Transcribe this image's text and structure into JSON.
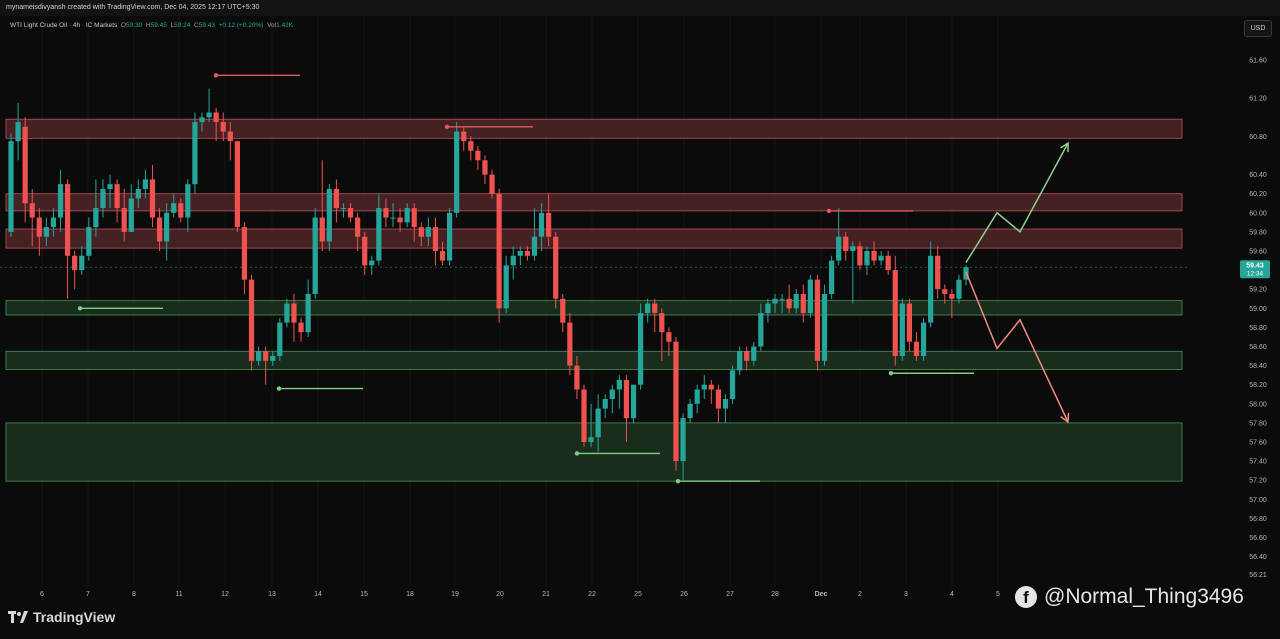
{
  "header": {
    "text": "mynameisdivyansh created with TradingView.com, Dec 04, 2025 12:17 UTC+5:30"
  },
  "symbol": {
    "name": "WTI Light Crude Oil · 4h · IC Markets",
    "o_label": "O",
    "o": "59.30",
    "h_label": "H",
    "h": "59.45",
    "l_label": "L",
    "l": "59.24",
    "c_label": "C",
    "c": "59.43",
    "change": "+0.12 (+0.20%)",
    "vol_label": "Vol",
    "vol": "1.42K"
  },
  "currency": "USD",
  "colors": {
    "bull": "#26a69a",
    "bear": "#ef5350",
    "resistance_zone": "#5a2a2e",
    "support_zone": "#1f3a24",
    "up_arrow": "#8fd18f",
    "down_arrow": "#f28b82",
    "last_price_bg": "#26a69a"
  },
  "chart_data": {
    "type": "candlestick",
    "timeframe": "4h",
    "x_ticks": [
      "6",
      "7",
      "8",
      "11",
      "12",
      "13",
      "14",
      "15",
      "18",
      "19",
      "20",
      "21",
      "22",
      "25",
      "26",
      "27",
      "28",
      "Dec",
      "2",
      "3",
      "4",
      "5"
    ],
    "y_ticks": [
      "61.60",
      "61.20",
      "60.80",
      "60.40",
      "60.20",
      "60.00",
      "59.80",
      "59.60",
      "59.20",
      "59.00",
      "58.80",
      "58.60",
      "58.40",
      "58.20",
      "58.00",
      "57.80",
      "57.60",
      "57.40",
      "57.20",
      "57.00",
      "56.80",
      "56.60",
      "56.40",
      "56.21"
    ],
    "ylim": [
      56.21,
      61.75
    ],
    "last_price": "59.43",
    "countdown": "12:34",
    "zones": [
      {
        "type": "resistance",
        "from": 60.78,
        "to": 60.98
      },
      {
        "type": "resistance",
        "from": 60.02,
        "to": 60.2
      },
      {
        "type": "resistance",
        "from": 59.63,
        "to": 59.83
      },
      {
        "type": "support",
        "from": 58.93,
        "to": 59.08
      },
      {
        "type": "support",
        "from": 58.36,
        "to": 58.55
      },
      {
        "type": "support",
        "from": 57.19,
        "to": 57.8
      }
    ],
    "swing_levels": [
      {
        "kind": "high",
        "price": 61.44,
        "x1": 216,
        "x2": 300
      },
      {
        "kind": "high",
        "price": 60.9,
        "x1": 447,
        "x2": 533
      },
      {
        "kind": "high",
        "price": 60.02,
        "x1": 829,
        "x2": 913
      },
      {
        "kind": "low",
        "price": 59.0,
        "x1": 80,
        "x2": 163
      },
      {
        "kind": "low",
        "price": 58.16,
        "x1": 279,
        "x2": 363
      },
      {
        "kind": "low",
        "price": 57.48,
        "x1": 577,
        "x2": 660
      },
      {
        "kind": "low",
        "price": 57.19,
        "x1": 678,
        "x2": 760
      },
      {
        "kind": "low",
        "price": 58.32,
        "x1": 891,
        "x2": 974
      }
    ],
    "projections": [
      {
        "direction": "up",
        "path": [
          [
            966,
            59.48
          ],
          [
            997,
            60.0
          ],
          [
            1020,
            59.8
          ],
          [
            1068,
            60.73
          ]
        ]
      },
      {
        "direction": "down",
        "path": [
          [
            966,
            59.38
          ],
          [
            997,
            58.58
          ],
          [
            1020,
            58.88
          ],
          [
            1068,
            57.81
          ]
        ]
      }
    ],
    "candles": [
      [
        59.8,
        60.75,
        59.75,
        60.83
      ],
      [
        60.75,
        60.95,
        60.55,
        61.15
      ],
      [
        60.9,
        60.1,
        59.9,
        61.0
      ],
      [
        60.1,
        59.95,
        59.65,
        60.25
      ],
      [
        59.95,
        59.75,
        59.55,
        60.05
      ],
      [
        59.75,
        59.85,
        59.65,
        59.95
      ],
      [
        59.85,
        59.95,
        59.75,
        60.05
      ],
      [
        59.95,
        60.3,
        59.8,
        60.45
      ],
      [
        60.3,
        59.55,
        59.1,
        60.35
      ],
      [
        59.55,
        59.4,
        59.2,
        59.6
      ],
      [
        59.4,
        59.55,
        59.35,
        59.65
      ],
      [
        59.55,
        59.85,
        59.5,
        59.95
      ],
      [
        59.85,
        60.05,
        59.75,
        60.35
      ],
      [
        60.05,
        60.25,
        59.95,
        60.35
      ],
      [
        60.25,
        60.3,
        60.05,
        60.4
      ],
      [
        60.3,
        60.05,
        59.9,
        60.35
      ],
      [
        60.05,
        59.8,
        59.7,
        60.25
      ],
      [
        59.8,
        60.15,
        59.8,
        60.3
      ],
      [
        60.15,
        60.25,
        60.05,
        60.35
      ],
      [
        60.25,
        60.35,
        60.15,
        60.45
      ],
      [
        60.35,
        59.95,
        59.85,
        60.5
      ],
      [
        59.95,
        59.7,
        59.6,
        60.05
      ],
      [
        59.7,
        60.0,
        59.5,
        60.1
      ],
      [
        60.0,
        60.1,
        59.95,
        60.2
      ],
      [
        60.1,
        59.95,
        59.9,
        60.15
      ],
      [
        59.95,
        60.3,
        59.8,
        60.35
      ],
      [
        60.3,
        60.95,
        60.2,
        61.05
      ],
      [
        60.95,
        61.0,
        60.85,
        61.05
      ],
      [
        61.0,
        61.05,
        60.95,
        61.3
      ],
      [
        61.05,
        60.95,
        60.75,
        61.1
      ],
      [
        60.95,
        60.85,
        60.75,
        61.05
      ],
      [
        60.85,
        60.75,
        60.55,
        60.95
      ],
      [
        60.75,
        59.85,
        59.8,
        60.75
      ],
      [
        59.85,
        59.3,
        59.15,
        59.9
      ],
      [
        59.3,
        58.45,
        58.35,
        59.35
      ],
      [
        58.45,
        58.55,
        58.4,
        58.6
      ],
      [
        58.55,
        58.45,
        58.2,
        58.6
      ],
      [
        58.45,
        58.5,
        58.4,
        58.55
      ],
      [
        58.5,
        58.85,
        58.45,
        58.9
      ],
      [
        58.85,
        59.05,
        58.8,
        59.1
      ],
      [
        59.05,
        58.85,
        58.65,
        59.15
      ],
      [
        58.85,
        58.75,
        58.65,
        58.9
      ],
      [
        58.75,
        59.15,
        58.7,
        59.3
      ],
      [
        59.15,
        59.95,
        59.1,
        60.05
      ],
      [
        59.95,
        59.7,
        59.6,
        60.55
      ],
      [
        59.7,
        60.25,
        59.6,
        60.3
      ],
      [
        60.25,
        60.05,
        59.9,
        60.35
      ],
      [
        60.05,
        60.05,
        59.95,
        60.1
      ],
      [
        60.05,
        59.95,
        59.9,
        60.1
      ],
      [
        59.95,
        59.75,
        59.6,
        60.0
      ],
      [
        59.75,
        59.45,
        59.35,
        59.8
      ],
      [
        59.45,
        59.5,
        59.35,
        59.55
      ],
      [
        59.5,
        60.05,
        59.45,
        60.2
      ],
      [
        60.05,
        59.95,
        59.85,
        60.15
      ],
      [
        59.95,
        59.95,
        59.85,
        60.1
      ],
      [
        59.95,
        59.9,
        59.8,
        60.05
      ],
      [
        59.9,
        60.05,
        59.85,
        60.1
      ],
      [
        60.05,
        59.85,
        59.7,
        60.1
      ],
      [
        59.85,
        59.75,
        59.65,
        59.9
      ],
      [
        59.75,
        59.85,
        59.65,
        59.95
      ],
      [
        59.85,
        59.6,
        59.45,
        59.95
      ],
      [
        59.6,
        59.5,
        59.45,
        59.7
      ],
      [
        59.5,
        60.0,
        59.45,
        60.05
      ],
      [
        60.0,
        60.85,
        59.95,
        60.95
      ],
      [
        60.85,
        60.75,
        60.65,
        60.9
      ],
      [
        60.75,
        60.65,
        60.55,
        60.8
      ],
      [
        60.65,
        60.55,
        60.45,
        60.7
      ],
      [
        60.55,
        60.4,
        60.3,
        60.6
      ],
      [
        60.4,
        60.2,
        60.15,
        60.45
      ],
      [
        60.2,
        59.0,
        58.85,
        60.25
      ],
      [
        59.0,
        59.45,
        58.95,
        59.55
      ],
      [
        59.45,
        59.55,
        59.3,
        59.65
      ],
      [
        59.55,
        59.6,
        59.45,
        59.65
      ],
      [
        59.6,
        59.55,
        59.5,
        59.65
      ],
      [
        59.55,
        59.75,
        59.5,
        60.05
      ],
      [
        59.75,
        60.0,
        59.6,
        60.1
      ],
      [
        60.0,
        59.75,
        59.65,
        60.2
      ],
      [
        59.75,
        59.1,
        59.0,
        59.8
      ],
      [
        59.1,
        58.85,
        58.75,
        59.15
      ],
      [
        58.85,
        58.4,
        58.3,
        58.95
      ],
      [
        58.4,
        58.15,
        58.05,
        58.5
      ],
      [
        58.15,
        57.6,
        57.55,
        58.2
      ],
      [
        57.6,
        57.65,
        57.55,
        58.0
      ],
      [
        57.65,
        57.95,
        57.5,
        58.1
      ],
      [
        57.95,
        58.05,
        57.85,
        58.1
      ],
      [
        58.05,
        58.15,
        57.9,
        58.2
      ],
      [
        58.15,
        58.25,
        57.95,
        58.3
      ],
      [
        58.25,
        57.85,
        57.6,
        58.3
      ],
      [
        57.85,
        58.2,
        57.8,
        58.2
      ],
      [
        58.2,
        58.95,
        58.15,
        59.05
      ],
      [
        58.95,
        59.05,
        58.85,
        59.1
      ],
      [
        59.05,
        58.95,
        58.75,
        59.1
      ],
      [
        58.95,
        58.75,
        58.45,
        59.0
      ],
      [
        58.75,
        58.65,
        58.5,
        58.8
      ],
      [
        58.65,
        57.4,
        57.3,
        58.7
      ],
      [
        57.4,
        57.85,
        57.2,
        57.9
      ],
      [
        57.85,
        58.0,
        57.8,
        58.05
      ],
      [
        58.0,
        58.15,
        57.9,
        58.2
      ],
      [
        58.15,
        58.2,
        58.05,
        58.3
      ],
      [
        58.2,
        58.15,
        58.0,
        58.25
      ],
      [
        58.15,
        57.95,
        57.8,
        58.2
      ],
      [
        57.95,
        58.05,
        57.8,
        58.1
      ],
      [
        58.05,
        58.35,
        58.0,
        58.4
      ],
      [
        58.35,
        58.55,
        58.3,
        58.6
      ],
      [
        58.55,
        58.45,
        58.35,
        58.6
      ],
      [
        58.45,
        58.6,
        58.4,
        58.65
      ],
      [
        58.6,
        58.95,
        58.55,
        59.05
      ],
      [
        58.95,
        59.05,
        58.85,
        59.1
      ],
      [
        59.05,
        59.1,
        58.95,
        59.15
      ],
      [
        59.1,
        59.1,
        58.95,
        59.15
      ],
      [
        59.1,
        59.0,
        58.95,
        59.25
      ],
      [
        59.0,
        59.15,
        58.95,
        59.2
      ],
      [
        59.15,
        58.95,
        58.85,
        59.25
      ],
      [
        58.95,
        59.3,
        58.9,
        59.35
      ],
      [
        59.3,
        58.45,
        58.35,
        59.35
      ],
      [
        58.45,
        59.15,
        58.4,
        59.25
      ],
      [
        59.15,
        59.5,
        59.1,
        59.55
      ],
      [
        59.5,
        59.75,
        59.45,
        60.05
      ],
      [
        59.75,
        59.6,
        59.5,
        59.8
      ],
      [
        59.6,
        59.65,
        59.05,
        59.7
      ],
      [
        59.65,
        59.45,
        59.4,
        59.7
      ],
      [
        59.45,
        59.6,
        59.35,
        59.65
      ],
      [
        59.6,
        59.5,
        59.45,
        59.7
      ],
      [
        59.5,
        59.55,
        59.45,
        59.6
      ],
      [
        59.55,
        59.4,
        59.35,
        59.6
      ],
      [
        59.4,
        58.5,
        58.4,
        59.55
      ],
      [
        58.5,
        59.05,
        58.45,
        59.1
      ],
      [
        59.05,
        58.65,
        58.55,
        59.1
      ],
      [
        58.65,
        58.5,
        58.45,
        58.75
      ],
      [
        58.5,
        58.85,
        58.45,
        58.9
      ],
      [
        58.85,
        59.55,
        58.8,
        59.7
      ],
      [
        59.55,
        59.2,
        59.1,
        59.65
      ],
      [
        59.2,
        59.15,
        59.05,
        59.25
      ],
      [
        59.15,
        59.1,
        58.9,
        59.2
      ],
      [
        59.1,
        59.3,
        59.05,
        59.35
      ],
      [
        59.3,
        59.43,
        59.24,
        59.45
      ]
    ]
  },
  "brand": {
    "name": "TradingView"
  },
  "watermark": {
    "text": "@Normal_Thing3496"
  }
}
